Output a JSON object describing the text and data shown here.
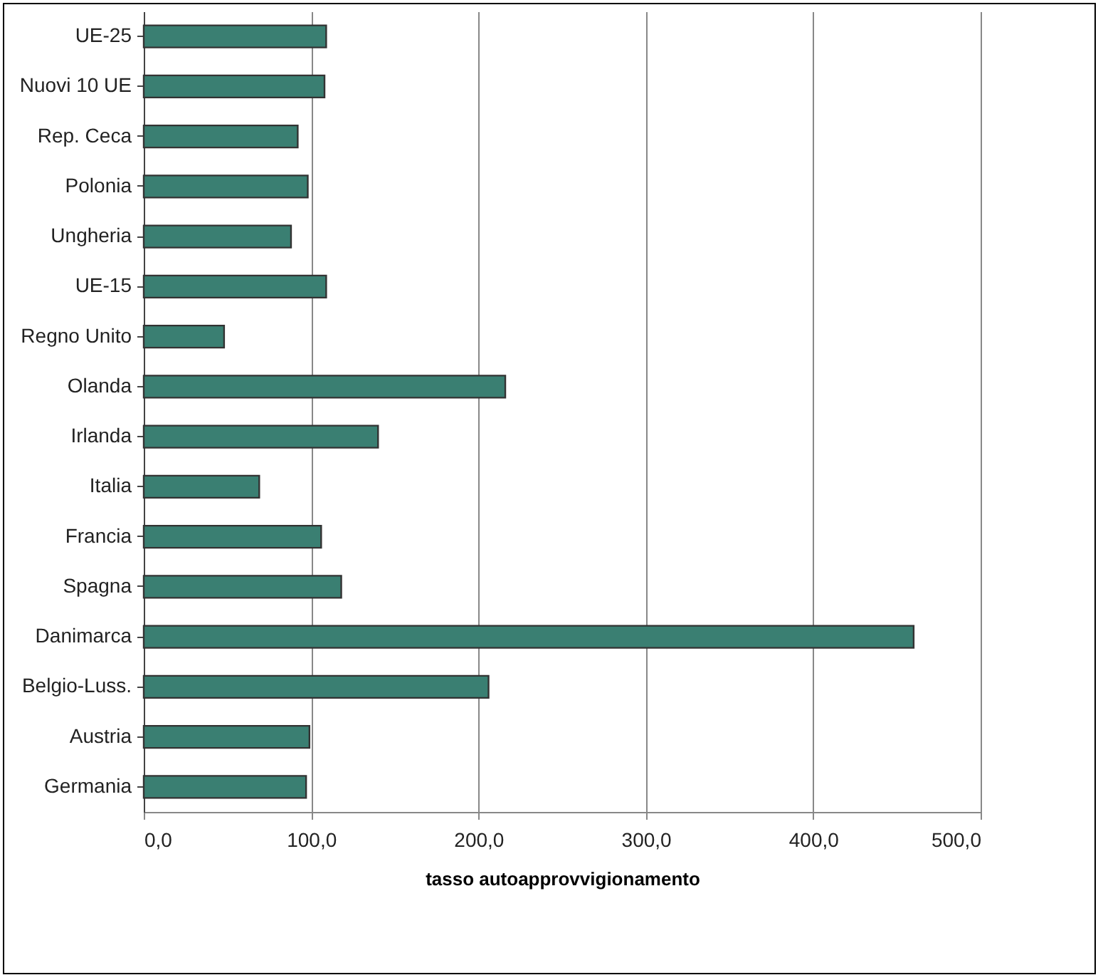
{
  "chart_data": {
    "type": "bar",
    "orientation": "horizontal",
    "xlabel": "tasso autoapprovvigionamento",
    "categories": [
      "UE-25",
      "Nuovi 10 UE",
      "Rep. Ceca",
      "Polonia",
      "Ungheria",
      "UE-15",
      "Regno Unito",
      "Olanda",
      "Irlanda",
      "Italia",
      "Francia",
      "Spagna",
      "Danimarca",
      "Belgio-Luss.",
      "Austria",
      "Germania"
    ],
    "values": [
      109,
      108,
      92,
      98,
      88,
      109,
      48,
      216,
      140,
      69,
      106,
      118,
      460,
      206,
      99,
      97
    ],
    "color": "#3a7f72",
    "xlim": [
      0,
      500
    ],
    "xticks": [
      {
        "value": 0,
        "label": "0,0"
      },
      {
        "value": 100,
        "label": "100,0"
      },
      {
        "value": 200,
        "label": "200,0"
      },
      {
        "value": 300,
        "label": "300,0"
      },
      {
        "value": 400,
        "label": "400,0"
      },
      {
        "value": 500,
        "label": "500,0"
      }
    ],
    "grid": "x"
  }
}
